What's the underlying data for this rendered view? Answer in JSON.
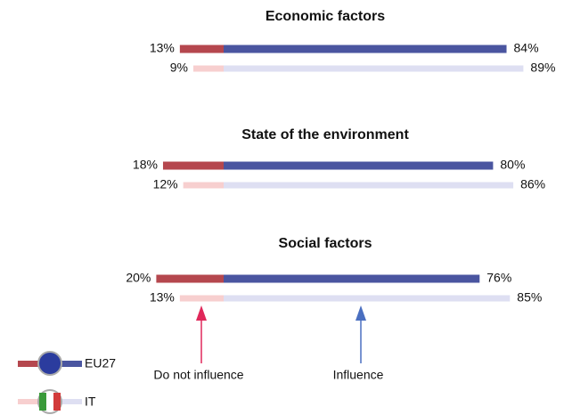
{
  "chart_data": {
    "type": "diverging_bar",
    "categories": [
      "Economic factors",
      "State of the environment",
      "Social factors"
    ],
    "series": [
      {
        "name": "EU27",
        "do_not_influence": {
          "color": "#b5474e",
          "values": [
            13,
            18,
            20
          ],
          "value_labels": [
            "13%",
            "18%",
            "20%"
          ]
        },
        "influence": {
          "color": "#4a55a0",
          "values": [
            84,
            80,
            76
          ],
          "value_labels": [
            "84%",
            "80%",
            "76%"
          ]
        }
      },
      {
        "name": "IT",
        "do_not_influence": {
          "color": "#f7cfcf",
          "values": [
            9,
            12,
            13
          ],
          "value_labels": [
            "9%",
            "12%",
            "13%"
          ]
        },
        "influence": {
          "color": "#dedff2",
          "values": [
            89,
            86,
            85
          ],
          "value_labels": [
            "89%",
            "86%",
            "85%"
          ]
        }
      }
    ],
    "annotations": [
      {
        "text": "Do not influence",
        "color": "#e0285a"
      },
      {
        "text": "Influence",
        "color": "#4a6fc0"
      }
    ]
  }
}
